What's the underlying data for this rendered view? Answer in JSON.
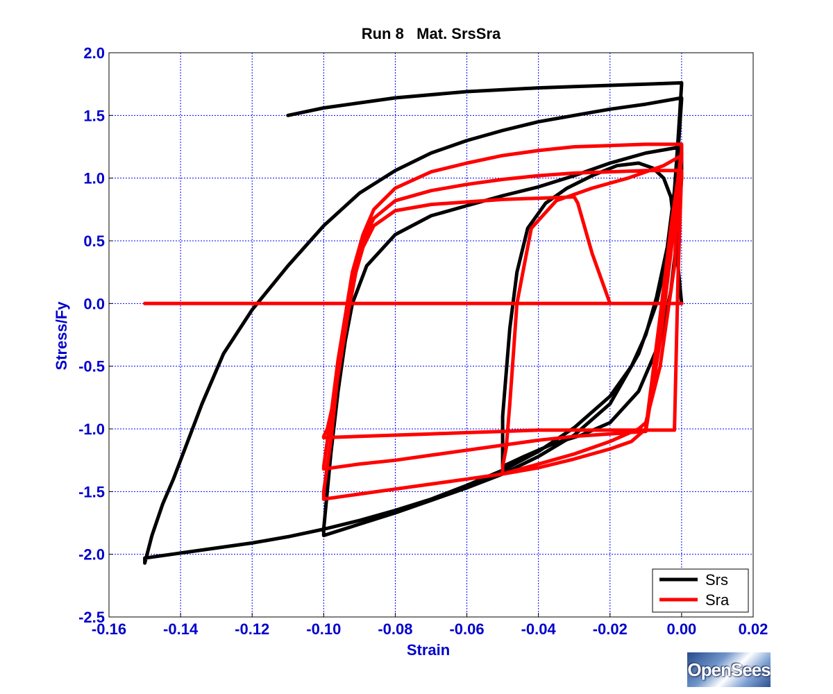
{
  "chart_data": {
    "type": "line",
    "title": "Run 8   Mat. SrsSra",
    "xlabel": "Strain",
    "ylabel": "Stress/Fy",
    "xlim": [
      -0.16,
      0.02
    ],
    "ylim": [
      -2.5,
      2.0
    ],
    "xticks": [
      -0.16,
      -0.14,
      -0.12,
      -0.1,
      -0.08,
      -0.06,
      -0.04,
      -0.02,
      0.0,
      0.02
    ],
    "xtick_labels": [
      "-0.16",
      "-0.14",
      "-0.12",
      "-0.10",
      "-0.08",
      "-0.06",
      "-0.04",
      "-0.02",
      "0.00",
      "0.02"
    ],
    "yticks": [
      -2.5,
      -2.0,
      -1.5,
      -1.0,
      -0.5,
      0.0,
      0.5,
      1.0,
      1.5,
      2.0
    ],
    "ytick_labels": [
      "-2.5",
      "-2.0",
      "-1.5",
      "-1.0",
      "-0.5",
      "0.0",
      "0.5",
      "1.0",
      "1.5",
      "2.0"
    ],
    "grid": true,
    "legend_position": "bottom-right",
    "series": [
      {
        "name": "Srs",
        "color": "#000000",
        "x": [
          0.0,
          -0.001,
          -0.002,
          -0.003,
          -0.005,
          -0.008,
          -0.012,
          -0.018,
          -0.025,
          -0.032,
          -0.038,
          -0.043,
          -0.046,
          -0.048,
          -0.05,
          -0.05,
          -0.044,
          -0.036,
          -0.028,
          -0.02,
          -0.012,
          -0.006,
          -0.003,
          -0.001,
          0.0,
          0.0,
          -0.01,
          -0.02,
          -0.03,
          -0.04,
          -0.05,
          -0.06,
          -0.07,
          -0.08,
          -0.088,
          -0.092,
          -0.094,
          -0.096,
          -0.098,
          -0.1,
          -0.1,
          -0.09,
          -0.08,
          -0.07,
          -0.06,
          -0.05,
          -0.04,
          -0.03,
          -0.02,
          -0.012,
          -0.007,
          -0.004,
          -0.002,
          -0.001,
          0.0,
          0.0,
          -0.01,
          -0.02,
          -0.03,
          -0.04,
          -0.05,
          -0.06,
          -0.07,
          -0.08,
          -0.09,
          -0.1,
          -0.11,
          -0.12,
          -0.128,
          -0.134,
          -0.138,
          -0.142,
          -0.145,
          -0.148,
          -0.15,
          -0.15,
          -0.14,
          -0.13,
          -0.12,
          -0.11,
          -0.1,
          -0.09,
          -0.08,
          -0.07,
          -0.06,
          -0.05,
          -0.04,
          -0.03,
          -0.02,
          -0.014,
          -0.01,
          -0.007,
          -0.004,
          -0.002,
          -0.001,
          0.0,
          0.0,
          -0.01,
          -0.02,
          -0.03,
          -0.04,
          -0.06,
          -0.08,
          -0.1,
          -0.11
        ],
        "y": [
          0.0,
          0.3,
          0.6,
          0.85,
          1.0,
          1.08,
          1.12,
          1.1,
          1.02,
          0.92,
          0.8,
          0.6,
          0.25,
          -0.2,
          -0.9,
          -1.3,
          -1.22,
          -1.12,
          -1.05,
          -0.95,
          -0.7,
          -0.3,
          0.1,
          0.6,
          1.0,
          1.25,
          1.2,
          1.12,
          1.02,
          0.93,
          0.86,
          0.78,
          0.7,
          0.55,
          0.3,
          0.0,
          -0.3,
          -0.7,
          -1.2,
          -1.8,
          -1.85,
          -1.76,
          -1.67,
          -1.57,
          -1.47,
          -1.36,
          -1.22,
          -1.05,
          -0.8,
          -0.4,
          0.0,
          0.4,
          0.8,
          1.2,
          1.63,
          1.64,
          1.59,
          1.55,
          1.5,
          1.45,
          1.38,
          1.3,
          1.2,
          1.06,
          0.88,
          0.62,
          0.3,
          -0.05,
          -0.4,
          -0.8,
          -1.1,
          -1.4,
          -1.6,
          -1.85,
          -2.07,
          -2.03,
          -1.99,
          -1.95,
          -1.91,
          -1.86,
          -1.8,
          -1.73,
          -1.65,
          -1.56,
          -1.45,
          -1.33,
          -1.18,
          -0.99,
          -0.74,
          -0.5,
          -0.25,
          0.05,
          0.45,
          0.9,
          1.3,
          1.75,
          1.76,
          1.75,
          1.74,
          1.73,
          1.72,
          1.69,
          1.64,
          1.56,
          1.5
        ]
      },
      {
        "name": "Sra",
        "color": "#ff0000",
        "x": [
          -0.15,
          -0.1,
          -0.05,
          0.0,
          -0.01,
          -0.02,
          -0.025,
          -0.029,
          -0.03,
          -0.04,
          -0.05,
          -0.06,
          -0.07,
          -0.08,
          -0.086,
          -0.089,
          -0.091,
          -0.093,
          -0.095,
          -0.097,
          -0.099,
          -0.1,
          -0.1,
          -0.09,
          -0.08,
          -0.07,
          -0.06,
          -0.05,
          -0.04,
          -0.03,
          -0.02,
          -0.01,
          -0.002,
          -0.001,
          0.0,
          0.0,
          -0.01,
          -0.02,
          -0.03,
          -0.04,
          -0.05,
          -0.06,
          -0.07,
          -0.08,
          -0.086,
          -0.089,
          -0.092,
          -0.094,
          -0.096,
          -0.098,
          -0.1,
          -0.1,
          -0.09,
          -0.08,
          -0.07,
          -0.06,
          -0.05,
          -0.04,
          -0.03,
          -0.02,
          -0.015,
          -0.01,
          -0.006,
          -0.003,
          -0.001,
          0.0,
          0.0,
          -0.01,
          -0.02,
          -0.03,
          -0.04,
          -0.05,
          -0.06,
          -0.07,
          -0.08,
          -0.086,
          -0.089,
          -0.092,
          -0.094,
          -0.096,
          -0.098,
          -0.1,
          -0.1,
          -0.09,
          -0.08,
          -0.07,
          -0.06,
          -0.05,
          -0.04,
          -0.03,
          -0.02,
          -0.014,
          -0.01,
          -0.006,
          -0.003,
          -0.001,
          0.0,
          0.0,
          -0.005,
          -0.015,
          -0.025,
          -0.035,
          -0.042,
          -0.044,
          -0.046,
          -0.047,
          -0.048,
          -0.049,
          -0.05,
          -0.05,
          -0.04,
          -0.03,
          -0.02,
          -0.012,
          -0.01,
          -0.006,
          -0.002,
          -0.001,
          0.0
        ],
        "y": [
          0.0,
          0.0,
          0.0,
          0.0,
          0.0,
          0.0,
          0.4,
          0.8,
          0.85,
          0.84,
          0.83,
          0.81,
          0.79,
          0.74,
          0.62,
          0.45,
          0.25,
          -0.05,
          -0.4,
          -0.75,
          -1.0,
          -1.06,
          -1.07,
          -1.06,
          -1.05,
          -1.04,
          -1.03,
          -1.02,
          -1.01,
          -1.01,
          -1.01,
          -1.01,
          -1.01,
          0.2,
          1.05,
          1.06,
          1.06,
          1.05,
          1.04,
          1.02,
          0.99,
          0.95,
          0.9,
          0.82,
          0.68,
          0.5,
          0.2,
          -0.1,
          -0.45,
          -0.9,
          -1.3,
          -1.32,
          -1.28,
          -1.25,
          -1.21,
          -1.17,
          -1.13,
          -1.09,
          -1.06,
          -1.04,
          -1.03,
          -1.02,
          -0.3,
          0.4,
          0.9,
          1.15,
          1.27,
          1.27,
          1.26,
          1.25,
          1.22,
          1.18,
          1.12,
          1.05,
          0.92,
          0.75,
          0.55,
          0.25,
          -0.1,
          -0.55,
          -1.1,
          -1.5,
          -1.56,
          -1.52,
          -1.48,
          -1.44,
          -1.4,
          -1.36,
          -1.31,
          -1.24,
          -1.16,
          -1.1,
          -1.0,
          -0.1,
          0.6,
          1.0,
          1.22,
          1.18,
          1.1,
          1.0,
          0.92,
          0.82,
          0.6,
          0.3,
          0.0,
          -0.4,
          -0.8,
          -1.15,
          -1.3,
          -1.36,
          -1.28,
          -1.2,
          -1.1,
          -1.0,
          -0.95,
          -0.5,
          0.3,
          0.9,
          1.2
        ]
      }
    ]
  },
  "logo": {
    "text": "OpenSees"
  }
}
